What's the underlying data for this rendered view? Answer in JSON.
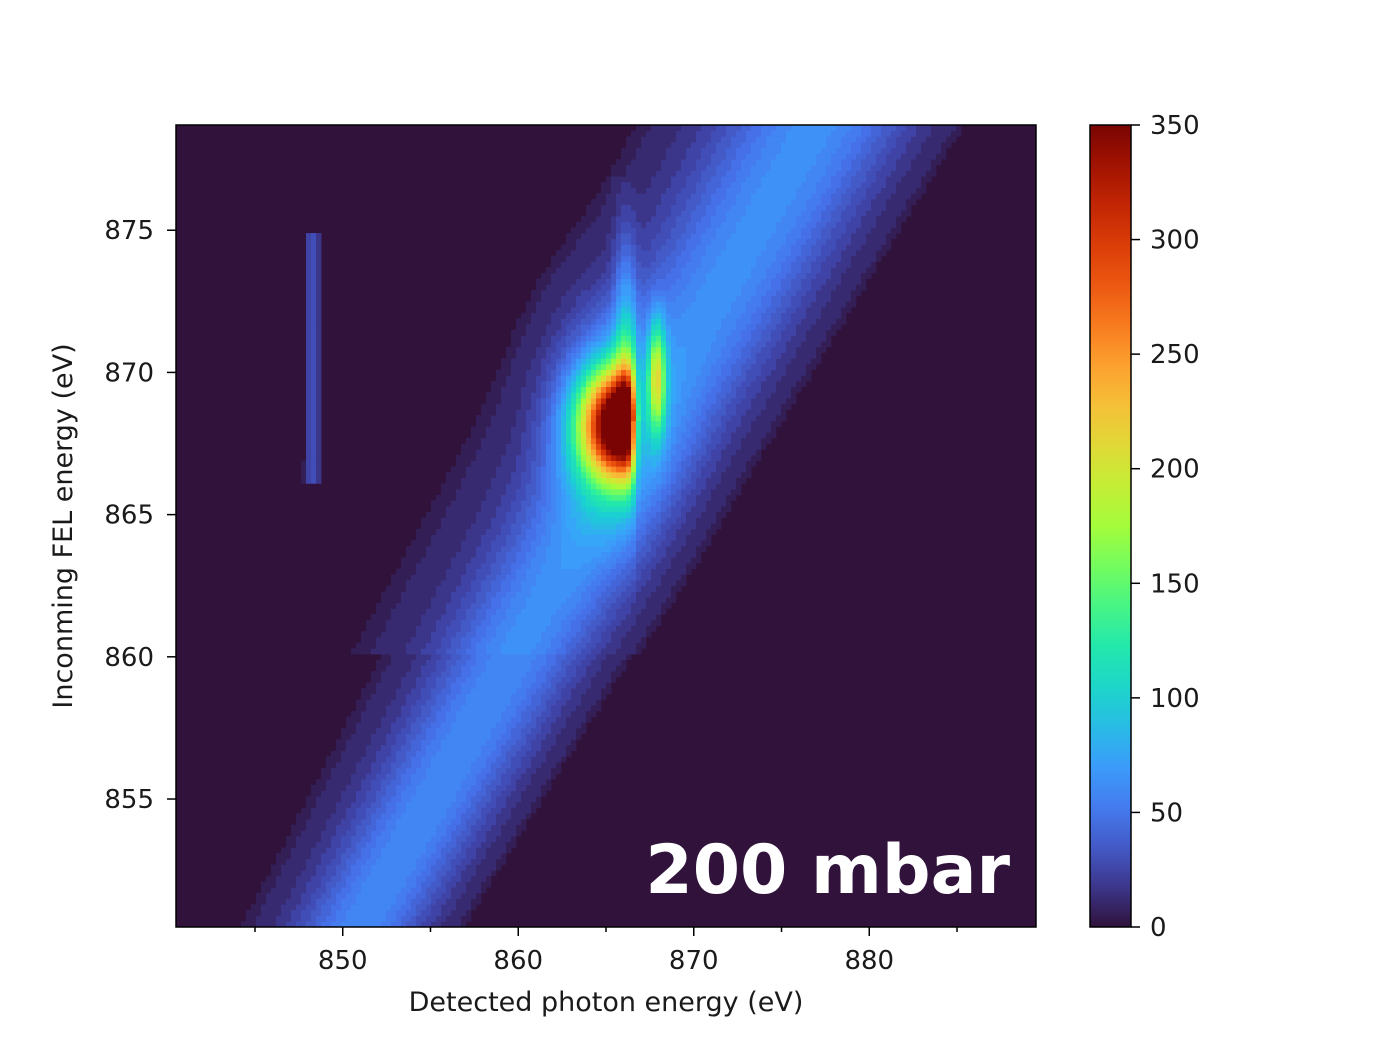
{
  "chart_data": {
    "type": "heatmap",
    "title": "",
    "xlabel": "Detected photon energy (eV)",
    "ylabel": "Inconming FEL energy (eV)",
    "xlim": [
      840.5,
      889.5
    ],
    "ylim": [
      850.5,
      878.7
    ],
    "x_ticks": [
      850,
      860,
      870,
      880
    ],
    "y_ticks": [
      855,
      860,
      865,
      870,
      875
    ],
    "colorbar": {
      "min": 0,
      "max": 350,
      "ticks": [
        0,
        50,
        100,
        150,
        200,
        250,
        300,
        350
      ],
      "colormap": "turbo"
    },
    "annotation": "200 mbar",
    "background_color": "#30123b",
    "features": [
      {
        "name": "elastic diagonal band",
        "x_start": 851,
        "y_start": 850.5,
        "x_end": 877,
        "y_end": 878.7,
        "peak_value": 55
      },
      {
        "name": "main resonance peak",
        "x": 866.1,
        "y": 868.2,
        "peak_value": 340
      },
      {
        "name": "secondary peak",
        "x": 867.9,
        "y": 869.8,
        "peak_value": 140
      },
      {
        "name": "faint vertical line",
        "x": 848.3,
        "y_min": 866,
        "y_max": 875,
        "peak_value": 30
      }
    ]
  }
}
